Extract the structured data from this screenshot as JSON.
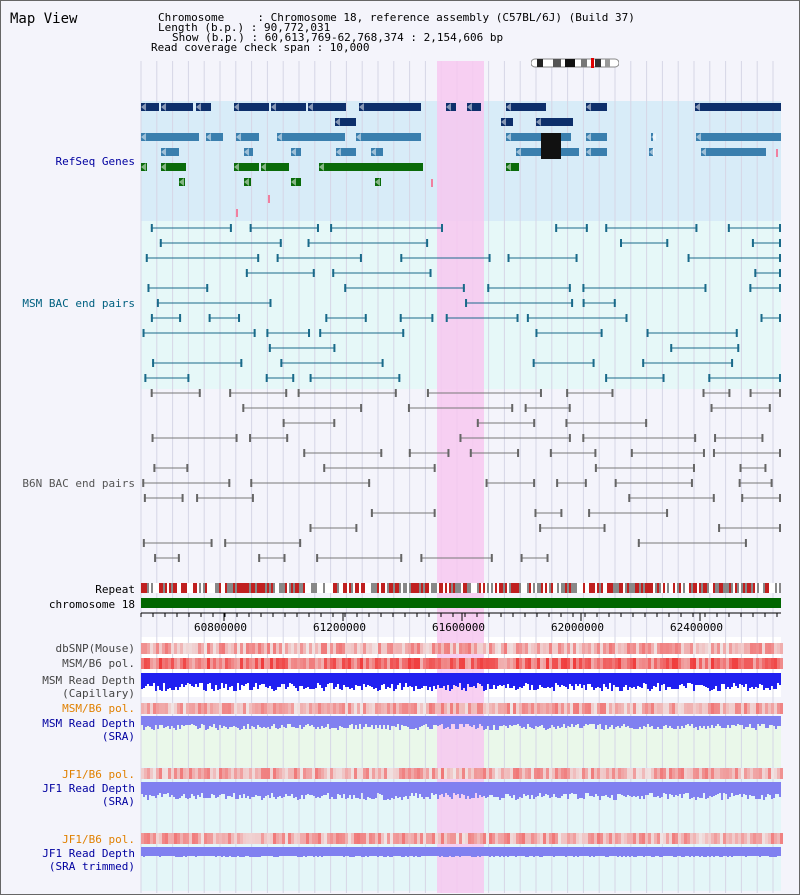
{
  "title": "Map View",
  "header": {
    "line1": "Chromosome     : Chromosome 18, reference assembly (C57BL/6J) (Build 37)",
    "line2": "Length (b.p.) : 90,772,031",
    "line3": "Show (b.p.) : 60,613,769-62,768,374 : 2,154,606 bp",
    "line4": "Read coverage check span : 10,000"
  },
  "tracks": {
    "refseq": "RefSeq Genes",
    "msm_bac": "MSM BAC end pairs",
    "b6n_bac": "B6N BAC end pairs",
    "repeat": "Repeat",
    "chromosome": "chromosome 18",
    "dbsnp": "dbSNP(Mouse)",
    "msm_pol": "MSM/B6 pol.",
    "msm_depth_cap_1": "MSM Read Depth",
    "msm_depth_cap_2": "(Capillary)",
    "msm_pol2": "MSM/B6 pol.",
    "msm_depth_sra_1": "MSM Read Depth",
    "msm_depth_sra_2": "(SRA)",
    "jf1_pol": "JF1/B6 pol.",
    "jf1_depth_sra_1": "JF1 Read Depth",
    "jf1_depth_sra_2": "(SRA)",
    "jf1_pol2": "JF1/B6 pol.",
    "jf1_depth_trim_1": "JF1 Read Depth",
    "jf1_depth_trim_2": "(SRA trimmed)"
  },
  "axis": {
    "ticks": [
      "60800000",
      "61200000",
      "61600000",
      "62000000",
      "62400000"
    ]
  },
  "colors": {
    "gene_dark": "#0d2f6b",
    "gene_mid": "#3a7fae",
    "gene_green": "#0a6b0a",
    "msm_bac": "#1a6a8a",
    "b6n_bac": "#777777",
    "highlight": "#f7c8f0",
    "chromosome": "#006600",
    "snp": "#f07070",
    "depth": "#2020f0",
    "depth_light": "#8080f0",
    "orange": "#e08000",
    "blue_label": "#0000a0",
    "teal_label": "#006080"
  }
}
